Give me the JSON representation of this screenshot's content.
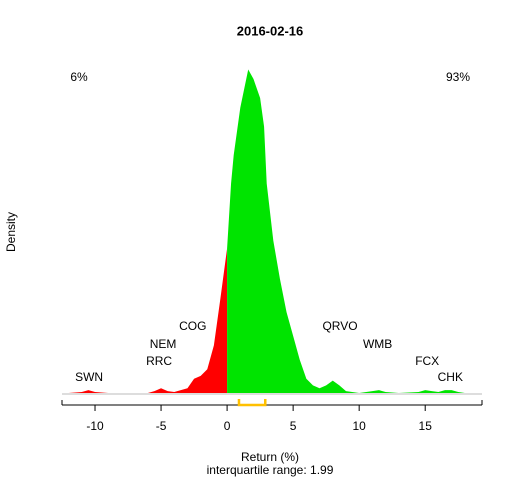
{
  "chart_data": {
    "type": "density",
    "title": "2016-02-16",
    "x_label": "Return (%)",
    "subtitle": "interquartile range: 1.99",
    "y_label": "Density",
    "left_share": "6%",
    "right_share": "93%",
    "negative_color": "#ff0000",
    "positive_color": "#00e400",
    "quartiles": [
      0.9,
      2.89
    ],
    "quartile_color": "#ffc000",
    "x": [
      -12,
      -11,
      -10.5,
      -10,
      -9,
      -6,
      -5.5,
      -5,
      -4.5,
      -4,
      -3,
      -2.5,
      -2,
      -1.5,
      -1,
      -0.5,
      0,
      0.3,
      0.5,
      1,
      1.6,
      2,
      2.5,
      2.8,
      3,
      3.5,
      4,
      4.5,
      5,
      5.5,
      6,
      6.5,
      7,
      7.5,
      8,
      8.5,
      9,
      10,
      11,
      11.5,
      12,
      13,
      14.5,
      15,
      15.5,
      16,
      16.5,
      17,
      17.5,
      18
    ],
    "values": [
      0,
      0.001,
      0.003,
      0.001,
      0,
      0,
      0.002,
      0.005,
      0.002,
      0.001,
      0.005,
      0.015,
      0.018,
      0.025,
      0.05,
      0.1,
      0.152,
      0.22,
      0.25,
      0.3,
      0.34,
      0.33,
      0.31,
      0.28,
      0.22,
      0.16,
      0.12,
      0.085,
      0.06,
      0.035,
      0.015,
      0.008,
      0.005,
      0.008,
      0.013,
      0.008,
      0.002,
      0,
      0.002,
      0.003,
      0.001,
      0,
      0.001,
      0.003,
      0.002,
      0.001,
      0.003,
      0.003,
      0.001,
      0
    ],
    "labels": [
      {
        "text": "SWN",
        "x": -10.45
      },
      {
        "text": "RRC",
        "x": -5.15
      },
      {
        "text": "NEM",
        "x": -4.85
      },
      {
        "text": "COG",
        "x": -2.6
      },
      {
        "text": "QRVO",
        "x": 8.55
      },
      {
        "text": "WMB",
        "x": 11.4
      },
      {
        "text": "FCX",
        "x": 15.15
      },
      {
        "text": "CHK",
        "x": 16.9
      }
    ],
    "xlim": [
      -12.5,
      19.3
    ],
    "ylim": [
      0,
      0.35
    ],
    "xticks": [
      -10,
      -5,
      0,
      5,
      10,
      15
    ]
  }
}
